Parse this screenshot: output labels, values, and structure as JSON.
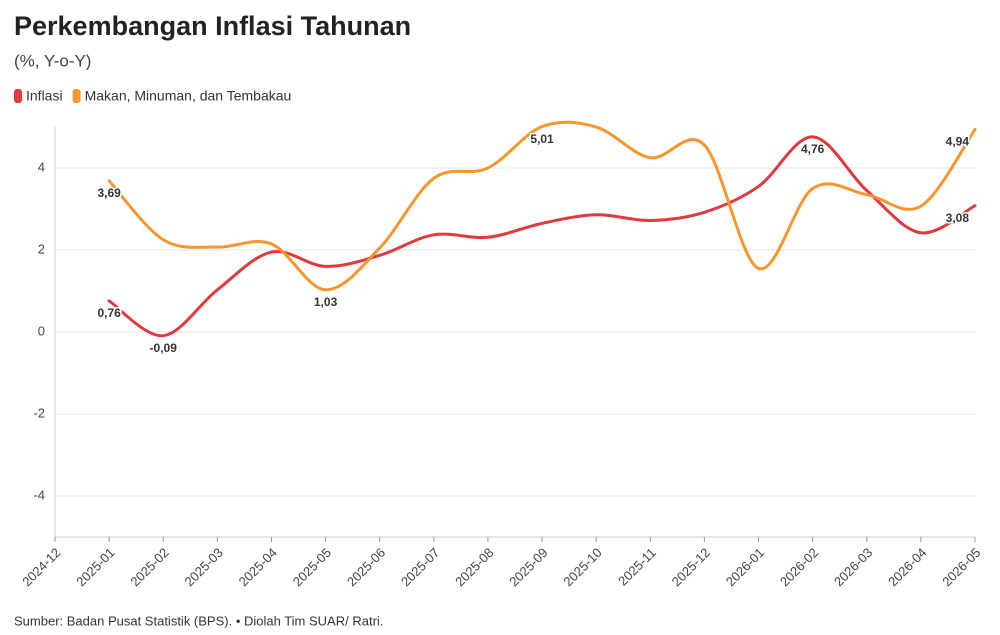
{
  "chart_data": {
    "type": "line",
    "title": "Perkembangan Inflasi Tahunan",
    "subtitle": "(%, Y-o-Y)",
    "source": "Sumber: Badan Pusat Statistik (BPS). • Diolah Tim SUAR/ Ratri.",
    "categories": [
      "2024-12",
      "2025-01",
      "2025-02",
      "2025-03",
      "2025-04",
      "2025-05",
      "2025-06",
      "2025-07",
      "2025-08",
      "2025-09",
      "2025-10",
      "2025-11",
      "2025-12",
      "2026-01",
      "2026-02",
      "2026-03",
      "2026-04",
      "2026-05"
    ],
    "series": [
      {
        "name": "Inflasi",
        "color": "#e0393e",
        "values": [
          null,
          0.76,
          -0.09,
          1.03,
          1.95,
          1.6,
          1.87,
          2.37,
          2.31,
          2.65,
          2.86,
          2.72,
          2.92,
          3.55,
          4.76,
          3.45,
          2.42,
          3.08
        ],
        "value_labels": [
          null,
          "0,76",
          "-0,09",
          null,
          null,
          null,
          null,
          null,
          null,
          null,
          null,
          null,
          null,
          null,
          "4,76",
          null,
          null,
          "3,08"
        ]
      },
      {
        "name": "Makan, Minuman, dan Tembakau",
        "color": "#f7952f",
        "values": [
          null,
          3.69,
          2.25,
          2.07,
          2.15,
          1.03,
          2.05,
          3.75,
          4.0,
          5.01,
          5.0,
          4.25,
          4.56,
          1.55,
          3.5,
          3.35,
          3.07,
          4.94
        ],
        "value_labels": [
          null,
          "3,69",
          null,
          null,
          null,
          "1,03",
          null,
          null,
          null,
          "5,01",
          null,
          null,
          null,
          null,
          null,
          null,
          null,
          "4,94"
        ]
      }
    ],
    "ylim": [
      -5,
      5
    ],
    "yticks": [
      -4,
      -2,
      0,
      2,
      4
    ],
    "grid": true,
    "legend": "top-left"
  }
}
